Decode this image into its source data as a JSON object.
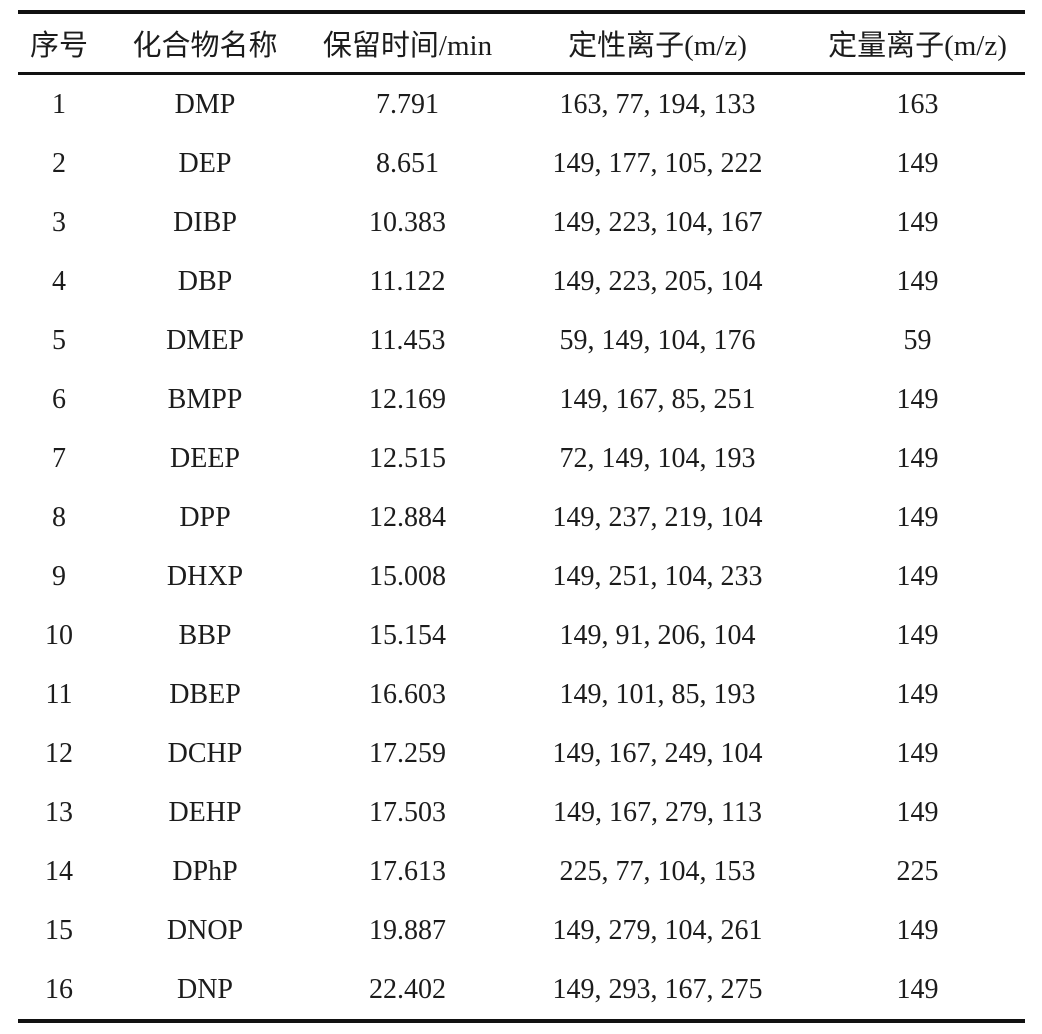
{
  "table": {
    "title_semantic": "gcms-compound-ion-table",
    "colors": {
      "text": "#1c1c1c",
      "rule": "#111111",
      "background": "#ffffff"
    },
    "columns": [
      {
        "key": "index",
        "label": "序号"
      },
      {
        "key": "compound",
        "label": "化合物名称"
      },
      {
        "key": "retention_time",
        "label": "保留时间/min"
      },
      {
        "key": "qualitative_ions",
        "label": "定性离子(m/z)"
      },
      {
        "key": "quantitative_ion",
        "label": "定量离子(m/z)"
      }
    ],
    "rows": [
      [
        "1",
        "DMP",
        "7.791",
        "163, 77, 194, 133",
        "163"
      ],
      [
        "2",
        "DEP",
        "8.651",
        "149, 177, 105, 222",
        "149"
      ],
      [
        "3",
        "DIBP",
        "10.383",
        "149, 223, 104, 167",
        "149"
      ],
      [
        "4",
        "DBP",
        "11.122",
        "149, 223, 205, 104",
        "149"
      ],
      [
        "5",
        "DMEP",
        "11.453",
        "59, 149, 104, 176",
        "59"
      ],
      [
        "6",
        "BMPP",
        "12.169",
        "149, 167, 85, 251",
        "149"
      ],
      [
        "7",
        "DEEP",
        "12.515",
        "72, 149, 104, 193",
        "149"
      ],
      [
        "8",
        "DPP",
        "12.884",
        "149, 237, 219, 104",
        "149"
      ],
      [
        "9",
        "DHXP",
        "15.008",
        "149, 251, 104, 233",
        "149"
      ],
      [
        "10",
        "BBP",
        "15.154",
        "149, 91, 206, 104",
        "149"
      ],
      [
        "11",
        "DBEP",
        "16.603",
        "149, 101, 85, 193",
        "149"
      ],
      [
        "12",
        "DCHP",
        "17.259",
        "149, 167, 249, 104",
        "149"
      ],
      [
        "13",
        "DEHP",
        "17.503",
        "149, 167, 279, 113",
        "149"
      ],
      [
        "14",
        "DPhP",
        "17.613",
        "225, 77, 104, 153",
        "225"
      ],
      [
        "15",
        "DNOP",
        "19.887",
        "149, 279, 104, 261",
        "149"
      ],
      [
        "16",
        "DNP",
        "22.402",
        "149, 293, 167, 275",
        "149"
      ]
    ]
  }
}
